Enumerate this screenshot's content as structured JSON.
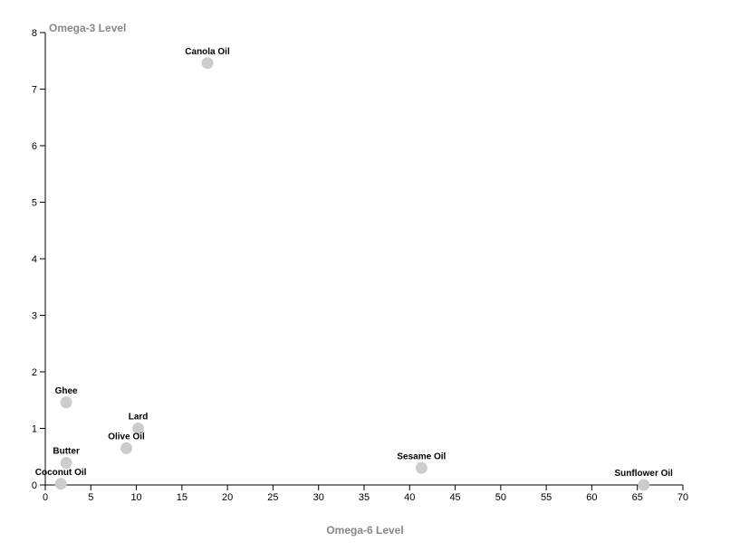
{
  "chart_data": {
    "type": "scatter",
    "title": "",
    "xlabel": "Omega-6 Level",
    "ylabel": "Omega-3 Level",
    "xlim": [
      0,
      70
    ],
    "ylim": [
      0,
      8
    ],
    "xticks": [
      0,
      5,
      10,
      15,
      20,
      25,
      30,
      35,
      40,
      45,
      50,
      55,
      60,
      65,
      70
    ],
    "yticks": [
      0,
      1,
      2,
      3,
      4,
      5,
      6,
      7,
      8
    ],
    "grid": false,
    "point_color": "#cccccc",
    "axis_title_color": "#888888",
    "points": [
      {
        "label": "Canola Oil",
        "x": 17.8,
        "y": 7.46
      },
      {
        "label": "Ghee",
        "x": 2.3,
        "y": 1.46
      },
      {
        "label": "Lard",
        "x": 10.2,
        "y": 1.0
      },
      {
        "label": "Olive Oil",
        "x": 8.9,
        "y": 0.65
      },
      {
        "label": "Butter",
        "x": 2.3,
        "y": 0.39
      },
      {
        "label": "Coconut Oil",
        "x": 1.7,
        "y": 0.02
      },
      {
        "label": "Sesame Oil",
        "x": 41.3,
        "y": 0.3
      },
      {
        "label": "Sunflower Oil",
        "x": 65.7,
        "y": 0.0
      }
    ]
  }
}
